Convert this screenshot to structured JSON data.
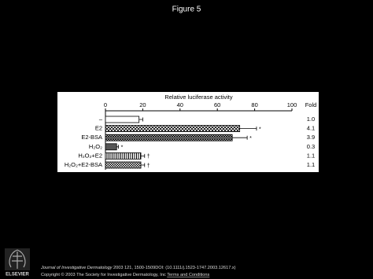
{
  "slide_title": "Figure 5",
  "chart_data": {
    "type": "bar",
    "orientation": "horizontal",
    "xlabel": "Relative luciferase activity",
    "categories": [
      "–",
      "E2",
      "E2-BSA",
      "H₂O₂",
      "H₂O₂+E2",
      "H₂O₂+E2-BSA"
    ],
    "values": [
      18,
      72,
      68,
      6,
      19,
      19
    ],
    "errors": [
      2,
      9,
      8,
      1,
      2,
      2
    ],
    "markers": [
      null,
      "*",
      "*",
      "*",
      "†",
      "†"
    ],
    "patterns": [
      "white",
      "diagonal-cross",
      "cross",
      "gray",
      "vertical",
      "checker"
    ],
    "fold_header": "Fold",
    "fold": [
      "1.0",
      "4.1",
      "3.9",
      "0.3",
      "1.1",
      "1.1"
    ],
    "xlim": [
      0,
      100
    ],
    "xticks": [
      0,
      20,
      40,
      60,
      80,
      100
    ]
  },
  "footer": {
    "journal": "Journal of Investigative Dermatology",
    "citation": " 2003 121, 1500-1509DOI: (10.1111/j.1523-1747.2003.12617.x)",
    "copyright": "Copyright © 2003 The Society for Investigative Dermatology, Inc",
    "link": "Terms and Conditions",
    "publisher": "ELSEVIER"
  }
}
